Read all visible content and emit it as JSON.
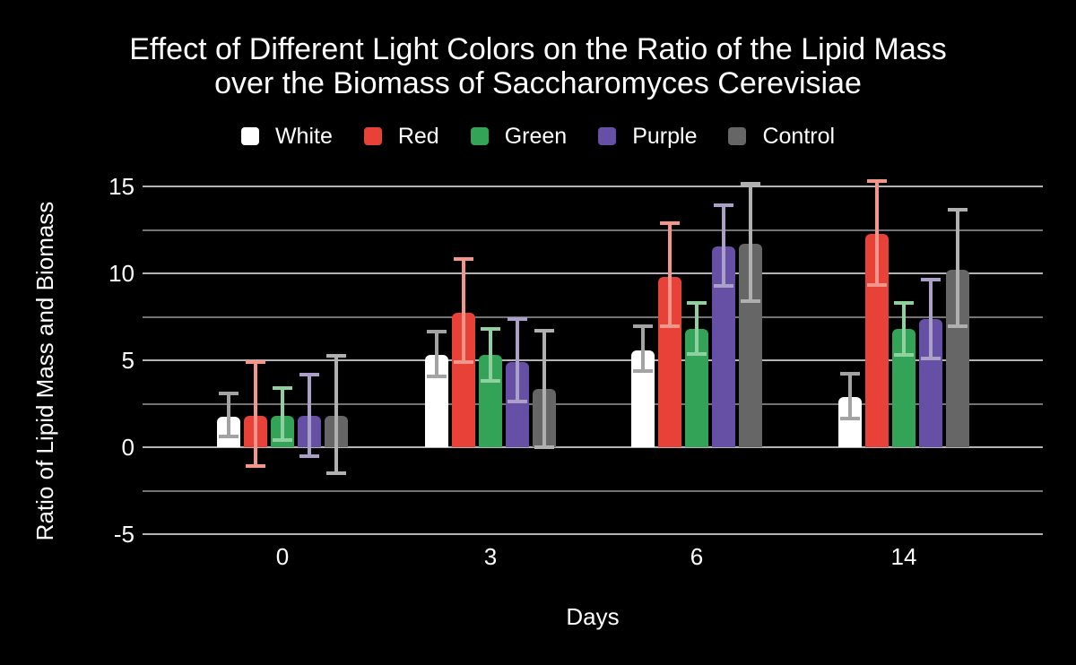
{
  "header": {
    "title_line1": "Effect of Different Light Colors on the Ratio of the Lipid Mass",
    "title_line2": "over the Biomass of Saccharomyces Cerevisiae"
  },
  "chart_data": {
    "type": "bar",
    "title": "Effect of Different Light Colors on the Ratio of the Lipid Mass over the Biomass of Saccharomyces Cerevisiae",
    "xlabel": "Days",
    "ylabel": "Ratio of Lipid Mass and Biomass",
    "categories": [
      "0",
      "3",
      "6",
      "14"
    ],
    "ylim": [
      -5,
      15
    ],
    "y_major_ticks": [
      15,
      10,
      5,
      0,
      -5
    ],
    "y_minor_gridlines": [
      12.5,
      7.5,
      2.5,
      -2.5
    ],
    "grid": true,
    "legend_position": "top",
    "error_bars": true,
    "background_color": "#000000",
    "text_color": "#ffffff",
    "major_gridline_color": "#b3b3b7",
    "minor_gridline_color": "#747474",
    "series": [
      {
        "name": "White",
        "color": "#ffffff",
        "error_color": "#a3a3a3",
        "values": [
          1.75,
          5.3,
          5.55,
          2.9
        ],
        "error_low": [
          0.6,
          4.05,
          4.4,
          1.65
        ],
        "error_high": [
          3.1,
          6.65,
          6.95,
          4.25
        ]
      },
      {
        "name": "Red",
        "color": "#e84138",
        "error_color": "#f2968c",
        "values": [
          1.8,
          7.75,
          9.8,
          12.25
        ],
        "error_low": [
          -1.1,
          4.9,
          6.95,
          9.35
        ],
        "error_high": [
          4.9,
          10.8,
          12.9,
          15.3
        ]
      },
      {
        "name": "Green",
        "color": "#33a457",
        "error_color": "#90cfa0",
        "values": [
          1.8,
          5.3,
          6.8,
          6.8
        ],
        "error_low": [
          0.4,
          3.8,
          5.35,
          5.3
        ],
        "error_high": [
          3.4,
          6.8,
          8.3,
          8.3
        ]
      },
      {
        "name": "Purple",
        "color": "#6550a5",
        "error_color": "#aaa0c8",
        "values": [
          1.8,
          4.9,
          11.55,
          7.35
        ],
        "error_low": [
          -0.5,
          2.65,
          9.3,
          5.1
        ],
        "error_high": [
          4.2,
          7.35,
          13.9,
          9.65
        ]
      },
      {
        "name": "Control",
        "color": "#666666",
        "error_color": "#b0b0b0",
        "values": [
          1.8,
          3.35,
          11.7,
          10.2
        ],
        "error_low": [
          -1.5,
          0.0,
          8.4,
          6.95
        ],
        "error_high": [
          5.25,
          6.7,
          15.15,
          13.65
        ]
      }
    ]
  }
}
